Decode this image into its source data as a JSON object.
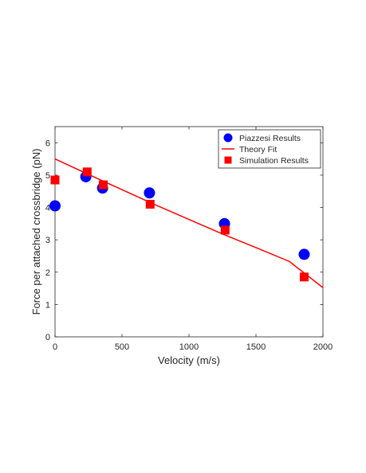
{
  "chart_data": {
    "type": "scatter",
    "xlabel": "Velocity (m/s)",
    "ylabel": "Force per attached crossbridge (pN)",
    "xlim": [
      0,
      2000
    ],
    "ylim": [
      0,
      6.5
    ],
    "x_ticks": [
      "0",
      "500",
      "1000",
      "1500",
      "2000"
    ],
    "y_ticks": [
      "0",
      "1",
      "2",
      "3",
      "4",
      "5",
      "6"
    ],
    "grid": false,
    "legend_position": "top-right",
    "series": [
      {
        "name": "Piazzesi Results",
        "kind": "scatter",
        "marker": "circle",
        "color": "#0000ff",
        "x": [
          0,
          230,
          355,
          705,
          1265,
          1860
        ],
        "y": [
          4.05,
          4.95,
          4.6,
          4.45,
          3.5,
          2.55
        ]
      },
      {
        "name": "Theory Fit",
        "kind": "line",
        "color": "#ff0000",
        "x": [
          0,
          250,
          500,
          750,
          1000,
          1250,
          1500,
          1750,
          2000
        ],
        "y": [
          5.5,
          5.02,
          4.55,
          4.08,
          3.63,
          3.18,
          2.76,
          2.33,
          1.52
        ]
      },
      {
        "name": "Simulation Results",
        "kind": "scatter",
        "marker": "square",
        "color": "#ff0000",
        "x": [
          0,
          240,
          360,
          710,
          1270,
          1860
        ],
        "y": [
          4.85,
          5.1,
          4.7,
          4.1,
          3.3,
          1.85
        ]
      }
    ]
  }
}
